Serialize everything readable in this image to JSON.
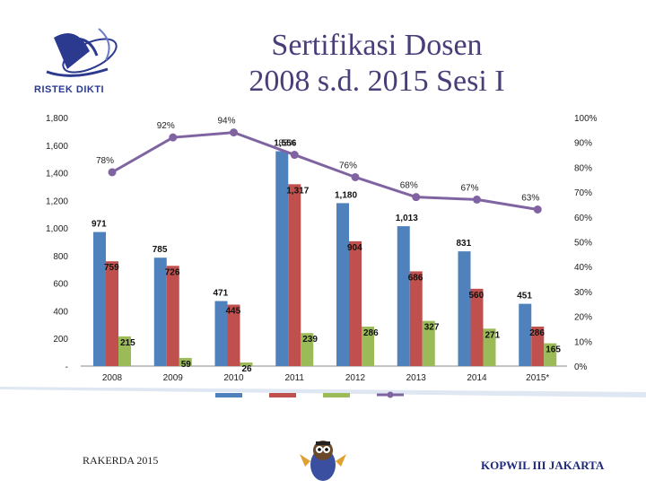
{
  "header": {
    "logo_text": "RISTEK DIKTI",
    "title_line1": "Sertifikasi Dosen",
    "title_line2": "2008 s.d. 2015 Sesi I"
  },
  "footer": {
    "left": "RAKERDA 2015",
    "right": "KOPWIL III JAKARTA"
  },
  "colors": {
    "blue": "#4f81bd",
    "red": "#c0504d",
    "green": "#9bbb59",
    "purple": "#8064a2",
    "title": "#4a3d7a"
  },
  "chart_data": {
    "type": "bar",
    "categories": [
      "2008",
      "2009",
      "2010",
      "2011",
      "2012",
      "2013",
      "2014",
      "2015*"
    ],
    "ylim": [
      0,
      1800
    ],
    "yticks": [
      "-",
      "200",
      "400",
      "600",
      "800",
      "1,000",
      "1,200",
      "1,400",
      "1,600",
      "1,800"
    ],
    "y2lim": [
      0,
      100
    ],
    "y2ticks": [
      "0%",
      "10%",
      "20%",
      "30%",
      "40%",
      "50%",
      "60%",
      "70%",
      "80%",
      "90%",
      "100%"
    ],
    "series": [
      {
        "values": [
          971,
          785,
          471,
          1556,
          1180,
          1013,
          831,
          451
        ],
        "labels": [
          "971",
          "785",
          "471",
          "1,556",
          "1,180",
          "1,013",
          "831",
          "451"
        ]
      },
      {
        "values": [
          759,
          726,
          445,
          1317,
          904,
          686,
          560,
          286
        ],
        "labels": [
          "759",
          "726",
          "445",
          "1,317",
          "904",
          "686",
          "560",
          "286"
        ]
      },
      {
        "values": [
          215,
          59,
          26,
          239,
          286,
          327,
          271,
          165
        ],
        "labels": [
          "215",
          "59",
          "26",
          "239",
          "286",
          "327",
          "271",
          "165"
        ]
      }
    ],
    "line": {
      "values": [
        78,
        92,
        94,
        85,
        76,
        68,
        67,
        63
      ],
      "labels": [
        "78%",
        "92%",
        "94%",
        "85%",
        "76%",
        "68%",
        "67%",
        "63%"
      ]
    },
    "grid": false,
    "legend": "bottom"
  }
}
